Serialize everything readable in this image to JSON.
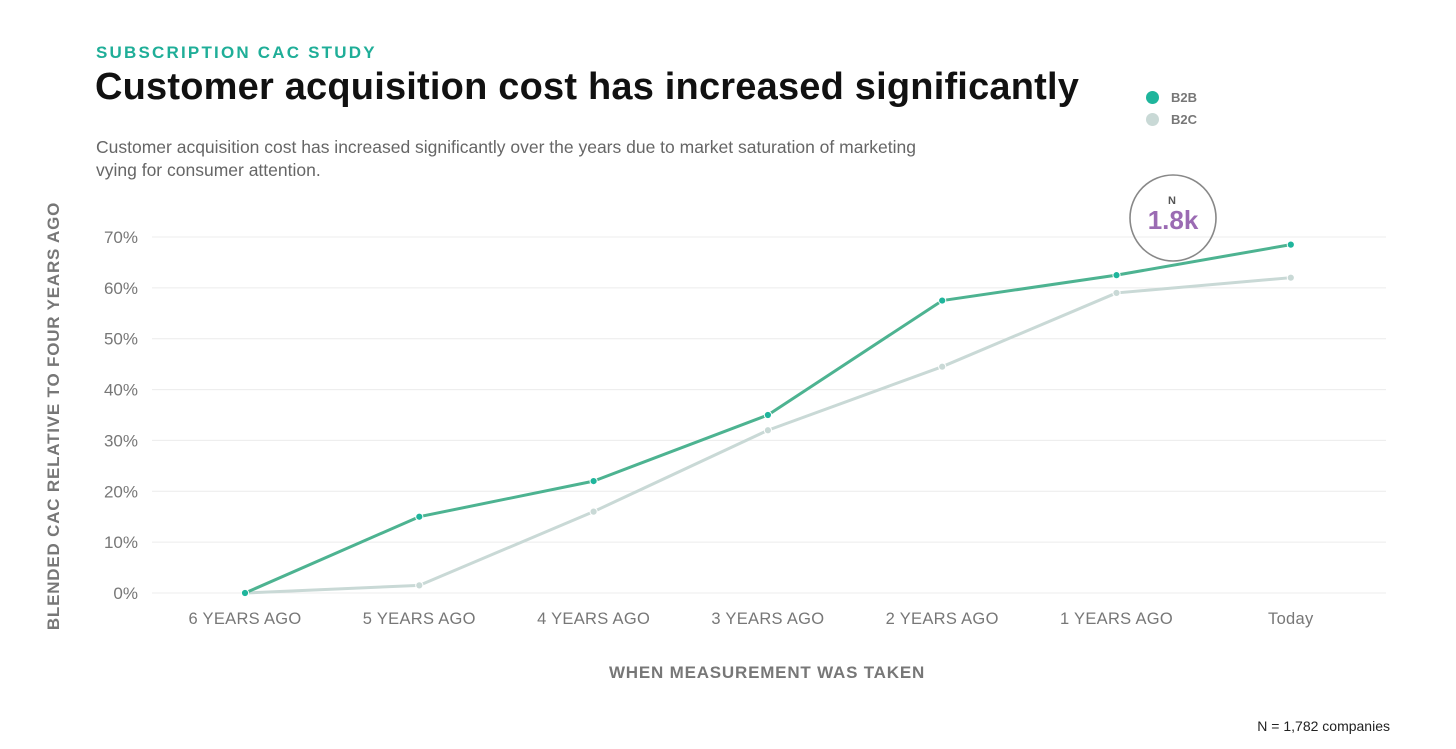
{
  "header": {
    "eyebrow": "SUBSCRIPTION CAC STUDY",
    "title": "Customer acquisition cost has increased significantly",
    "subtitle": "Customer acquisition cost has increased significantly over the years due to market saturation of marketing vying for consumer attention."
  },
  "badge": {
    "label": "N",
    "value": "1.8k"
  },
  "footnote": "N = 1,782 companies",
  "colors": {
    "b2b": "#4db391",
    "b2b_point": "#1fb59c",
    "b2c": "#c9d9d6",
    "grid": "#ececec",
    "accent": "#1fae98",
    "badge": "#9b6bb3"
  },
  "chart_data": {
    "type": "line",
    "title": "Customer acquisition cost has increased significantly",
    "xlabel": "WHEN MEASUREMENT WAS TAKEN",
    "ylabel": "BLENDED CAC RELATIVE TO FOUR YEARS AGO",
    "categories": [
      "6 YEARS AGO",
      "5 YEARS AGO",
      "4 YEARS AGO",
      "3 YEARS AGO",
      "2 YEARS AGO",
      "1 YEARS AGO",
      "Today"
    ],
    "yticks": [
      "0%",
      "10%",
      "20%",
      "30%",
      "40%",
      "50%",
      "60%",
      "70%"
    ],
    "ylim": [
      0,
      70
    ],
    "grid": true,
    "legend_position": "top-right",
    "series": [
      {
        "name": "B2B",
        "values": [
          0,
          15,
          22,
          35,
          57.5,
          62.5,
          68.5
        ]
      },
      {
        "name": "B2C",
        "values": [
          0,
          1.5,
          16,
          32,
          44.5,
          59,
          62
        ]
      }
    ]
  }
}
